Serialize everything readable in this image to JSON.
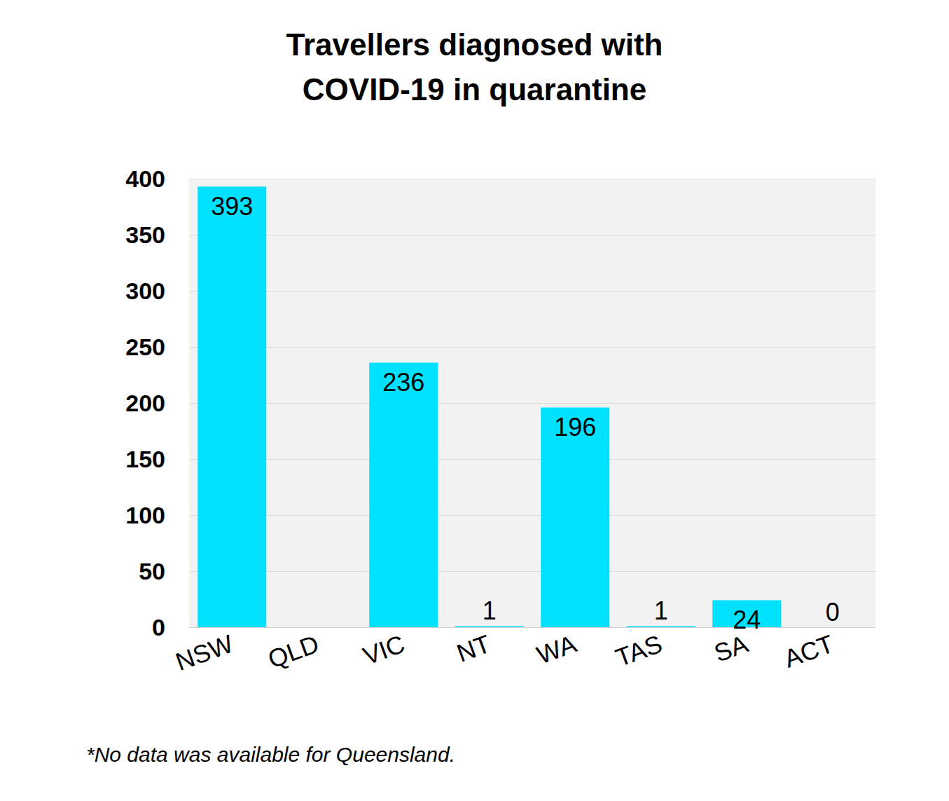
{
  "chart_data": {
    "type": "bar",
    "title": "Travellers diagnosed with\nCOVID-19 in quarantine",
    "footnote": "*No data was available for Queensland.",
    "categories": [
      "NSW",
      "QLD",
      "VIC",
      "NT",
      "WA",
      "TAS",
      "SA",
      "ACT"
    ],
    "values": [
      393,
      null,
      236,
      1,
      196,
      1,
      24,
      0
    ],
    "color": "#00e1ff",
    "ylim": [
      0,
      400
    ],
    "yticks": [
      0,
      50,
      100,
      150,
      200,
      250,
      300,
      350,
      400
    ],
    "grid": true,
    "data_labels": true
  }
}
